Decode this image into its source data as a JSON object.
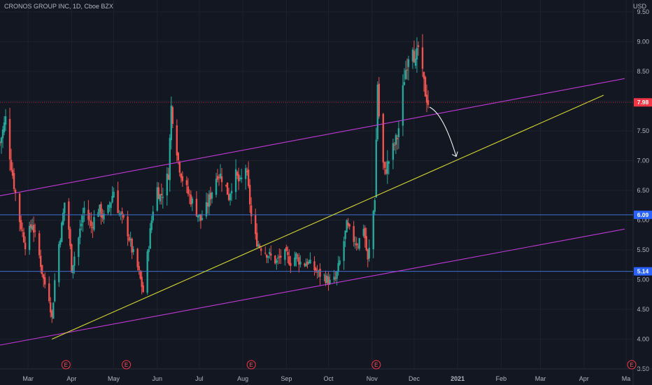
{
  "header": {
    "title": "CRONOS GROUP INC, 1D, Cboe BZX",
    "currency": "USD"
  },
  "colors": {
    "background": "#131722",
    "grid": "#1e2230",
    "up": "#26a69a",
    "down": "#ef5350",
    "channel": "#c03ad6",
    "trendline": "#d8d832",
    "hline": "#3f6fd1",
    "price_tag": "#f23645",
    "level_tag": "#2962ff",
    "arrow": "#ffffff"
  },
  "chart_data": {
    "type": "candlestick",
    "title": "CRONOS GROUP INC, 1D, Cboe BZX",
    "y_unit": "USD",
    "ylim": [
      3.5,
      9.7
    ],
    "y_ticks": [
      "9.50",
      "9.00",
      "8.50",
      "8.00",
      "7.50",
      "7.00",
      "6.50",
      "6.00",
      "5.50",
      "5.00",
      "4.50",
      "4.00",
      "3.50"
    ],
    "x_ticks": [
      {
        "label": "Mar",
        "date": "2020-03-01"
      },
      {
        "label": "Apr",
        "date": "2020-04-01"
      },
      {
        "label": "May",
        "date": "2020-05-01"
      },
      {
        "label": "Jun",
        "date": "2020-06-01"
      },
      {
        "label": "Jul",
        "date": "2020-07-01"
      },
      {
        "label": "Aug",
        "date": "2020-08-01"
      },
      {
        "label": "Sep",
        "date": "2020-09-01"
      },
      {
        "label": "Oct",
        "date": "2020-10-01"
      },
      {
        "label": "Nov",
        "date": "2020-11-01"
      },
      {
        "label": "Dec",
        "date": "2020-12-01"
      },
      {
        "label": "2021",
        "date": "2021-01-01"
      },
      {
        "label": "Feb",
        "date": "2021-02-01"
      },
      {
        "label": "Mar",
        "date": "2021-03-01"
      },
      {
        "label": "Apr",
        "date": "2021-04-01"
      },
      {
        "label": "Ma",
        "date": "2021-05-01"
      }
    ],
    "price_label": {
      "value": 7.98,
      "text": "7.98"
    },
    "horizontal_levels": [
      {
        "value": 6.09,
        "text": "6.09"
      },
      {
        "value": 5.14,
        "text": "5.14"
      }
    ],
    "earnings_markers": [
      {
        "date": "2020-03-28",
        "text": "E"
      },
      {
        "date": "2020-05-10",
        "text": "E"
      },
      {
        "date": "2020-08-07",
        "text": "E"
      },
      {
        "date": "2020-11-04",
        "text": "E"
      },
      {
        "date": "2021-05-05",
        "text": "E"
      }
    ],
    "trend_lines": [
      {
        "name": "upper-channel",
        "color": "#c03ad6",
        "p1": {
          "date": "2020-02-10",
          "price": 6.41
        },
        "p2": {
          "date": "2021-04-30",
          "price": 8.38
        }
      },
      {
        "name": "lower-channel",
        "color": "#c03ad6",
        "p1": {
          "date": "2020-02-10",
          "price": 3.9
        },
        "p2": {
          "date": "2021-04-30",
          "price": 5.85
        }
      },
      {
        "name": "support-trendline",
        "color": "#d8d832",
        "p1": {
          "date": "2020-03-18",
          "price": 4.0
        },
        "p2": {
          "date": "2021-04-15",
          "price": 8.1
        }
      }
    ],
    "projection_arrow": {
      "from": {
        "date": "2020-12-12",
        "price": 7.9
      },
      "to": {
        "date": "2020-12-31",
        "price": 7.07
      }
    },
    "price_path": [
      [
        "2020-02-10",
        7.3
      ],
      [
        "2020-02-14",
        7.7
      ],
      [
        "2020-02-17",
        7.1
      ],
      [
        "2020-02-20",
        6.6
      ],
      [
        "2020-02-24",
        6.0
      ],
      [
        "2020-02-28",
        5.6
      ],
      [
        "2020-03-04",
        5.95
      ],
      [
        "2020-03-09",
        5.4
      ],
      [
        "2020-03-12",
        5.0
      ],
      [
        "2020-03-16",
        4.7
      ],
      [
        "2020-03-18",
        4.35
      ],
      [
        "2020-03-21",
        5.3
      ],
      [
        "2020-03-25",
        5.9
      ],
      [
        "2020-03-28",
        6.5
      ],
      [
        "2020-04-01",
        5.2
      ],
      [
        "2020-04-06",
        5.7
      ],
      [
        "2020-04-10",
        6.2
      ],
      [
        "2020-04-15",
        5.9
      ],
      [
        "2020-04-20",
        6.2
      ],
      [
        "2020-04-25",
        6.0
      ],
      [
        "2020-05-01",
        6.5
      ],
      [
        "2020-05-05",
        6.1
      ],
      [
        "2020-05-10",
        5.9
      ],
      [
        "2020-05-14",
        5.5
      ],
      [
        "2020-05-18",
        5.2
      ],
      [
        "2020-05-22",
        4.8
      ],
      [
        "2020-05-26",
        5.6
      ],
      [
        "2020-05-31",
        6.6
      ],
      [
        "2020-06-03",
        6.4
      ],
      [
        "2020-06-06",
        6.5
      ],
      [
        "2020-06-09",
        6.8
      ],
      [
        "2020-06-11",
        7.9
      ],
      [
        "2020-06-13",
        7.6
      ],
      [
        "2020-06-16",
        7.0
      ],
      [
        "2020-06-20",
        6.6
      ],
      [
        "2020-06-24",
        6.4
      ],
      [
        "2020-06-28",
        6.2
      ],
      [
        "2020-07-02",
        6.0
      ],
      [
        "2020-07-06",
        6.2
      ],
      [
        "2020-07-10",
        6.5
      ],
      [
        "2020-07-14",
        6.8
      ],
      [
        "2020-07-18",
        6.7
      ],
      [
        "2020-07-22",
        6.4
      ],
      [
        "2020-07-26",
        6.8
      ],
      [
        "2020-07-30",
        6.6
      ],
      [
        "2020-08-03",
        6.9
      ],
      [
        "2020-08-06",
        6.3
      ],
      [
        "2020-08-08",
        5.8
      ],
      [
        "2020-08-12",
        5.6
      ],
      [
        "2020-08-16",
        5.5
      ],
      [
        "2020-08-20",
        5.4
      ],
      [
        "2020-08-25",
        5.3
      ],
      [
        "2020-08-30",
        5.45
      ],
      [
        "2020-09-04",
        5.3
      ],
      [
        "2020-09-08",
        5.4
      ],
      [
        "2020-09-12",
        5.25
      ],
      [
        "2020-09-16",
        5.3
      ],
      [
        "2020-09-20",
        5.2
      ],
      [
        "2020-09-24",
        5.1
      ],
      [
        "2020-09-28",
        5.05
      ],
      [
        "2020-10-02",
        4.95
      ],
      [
        "2020-10-06",
        5.0
      ],
      [
        "2020-10-10",
        5.4
      ],
      [
        "2020-10-14",
        5.9
      ],
      [
        "2020-10-18",
        5.7
      ],
      [
        "2020-10-22",
        5.6
      ],
      [
        "2020-10-26",
        5.9
      ],
      [
        "2020-10-29",
        5.3
      ],
      [
        "2020-11-01",
        5.9
      ],
      [
        "2020-11-03",
        6.4
      ],
      [
        "2020-11-05",
        8.3
      ],
      [
        "2020-11-07",
        7.2
      ],
      [
        "2020-11-10",
        6.8
      ],
      [
        "2020-11-13",
        7.0
      ],
      [
        "2020-11-16",
        7.2
      ],
      [
        "2020-11-19",
        7.4
      ],
      [
        "2020-11-21",
        7.7
      ],
      [
        "2020-11-24",
        8.4
      ],
      [
        "2020-11-27",
        8.8
      ],
      [
        "2020-11-30",
        9.0
      ],
      [
        "2020-12-02",
        8.6
      ],
      [
        "2020-12-04",
        8.9
      ],
      [
        "2020-12-07",
        8.4
      ],
      [
        "2020-12-09",
        8.15
      ],
      [
        "2020-12-11",
        7.98
      ]
    ]
  }
}
